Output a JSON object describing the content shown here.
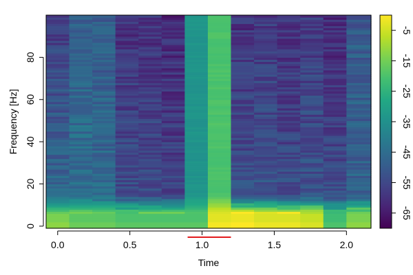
{
  "chart_data": {
    "type": "heatmap",
    "title": "",
    "xlabel": "Time",
    "ylabel": "Frequency [Hz]",
    "x_ticks": [
      0.0,
      0.5,
      1.0,
      1.5,
      2.0
    ],
    "x_tick_labels": [
      "0.0",
      "0.5",
      "1.0",
      "1.5",
      "2.0"
    ],
    "y_ticks": [
      0,
      20,
      40,
      60,
      80
    ],
    "y_tick_labels": [
      "0",
      "20",
      "40",
      "60",
      "80"
    ],
    "xlim": [
      -0.08,
      2.17
    ],
    "ylim": [
      -1,
      100
    ],
    "colorbar": {
      "range": [
        -70,
        0
      ],
      "ticks": [
        -65,
        -55,
        -45,
        -35,
        -25,
        -15,
        -5
      ],
      "tick_labels": [
        "-65",
        "-55",
        "-45",
        "-35",
        "-25",
        "-15",
        "-5"
      ],
      "colormap": "viridis"
    },
    "time_bins": [
      {
        "start": -0.08,
        "end": 0.08,
        "high_db": -58,
        "mid_db": -46,
        "low_db": -14
      },
      {
        "start": 0.08,
        "end": 0.24,
        "high_db": -48,
        "mid_db": -44,
        "low_db": -18
      },
      {
        "start": 0.24,
        "end": 0.4,
        "high_db": -50,
        "mid_db": -46,
        "low_db": -18
      },
      {
        "start": 0.4,
        "end": 0.56,
        "high_db": -60,
        "mid_db": -54,
        "low_db": -20
      },
      {
        "start": 0.56,
        "end": 0.72,
        "high_db": -60,
        "mid_db": -54,
        "low_db": -20
      },
      {
        "start": 0.72,
        "end": 0.88,
        "high_db": -62,
        "mid_db": -56,
        "low_db": -20
      },
      {
        "start": 0.88,
        "end": 1.04,
        "high_db": -34,
        "mid_db": -34,
        "low_db": -20
      },
      {
        "start": 1.04,
        "end": 1.2,
        "high_db": -20,
        "mid_db": -20,
        "low_db": -3
      },
      {
        "start": 1.2,
        "end": 1.36,
        "high_db": -60,
        "mid_db": -53,
        "low_db": -2
      },
      {
        "start": 1.36,
        "end": 1.52,
        "high_db": -58,
        "mid_db": -52,
        "low_db": -4
      },
      {
        "start": 1.52,
        "end": 1.68,
        "high_db": -60,
        "mid_db": -54,
        "low_db": -4
      },
      {
        "start": 1.68,
        "end": 1.84,
        "high_db": -58,
        "mid_db": -52,
        "low_db": -6
      },
      {
        "start": 1.84,
        "end": 2.0,
        "high_db": -62,
        "mid_db": -54,
        "low_db": -22
      },
      {
        "start": 2.0,
        "end": 2.17,
        "high_db": -50,
        "mid_db": -48,
        "low_db": -14
      }
    ],
    "marker_segment": {
      "x_start": 0.9,
      "x_end": 1.2,
      "color": "#e31a1c"
    }
  }
}
